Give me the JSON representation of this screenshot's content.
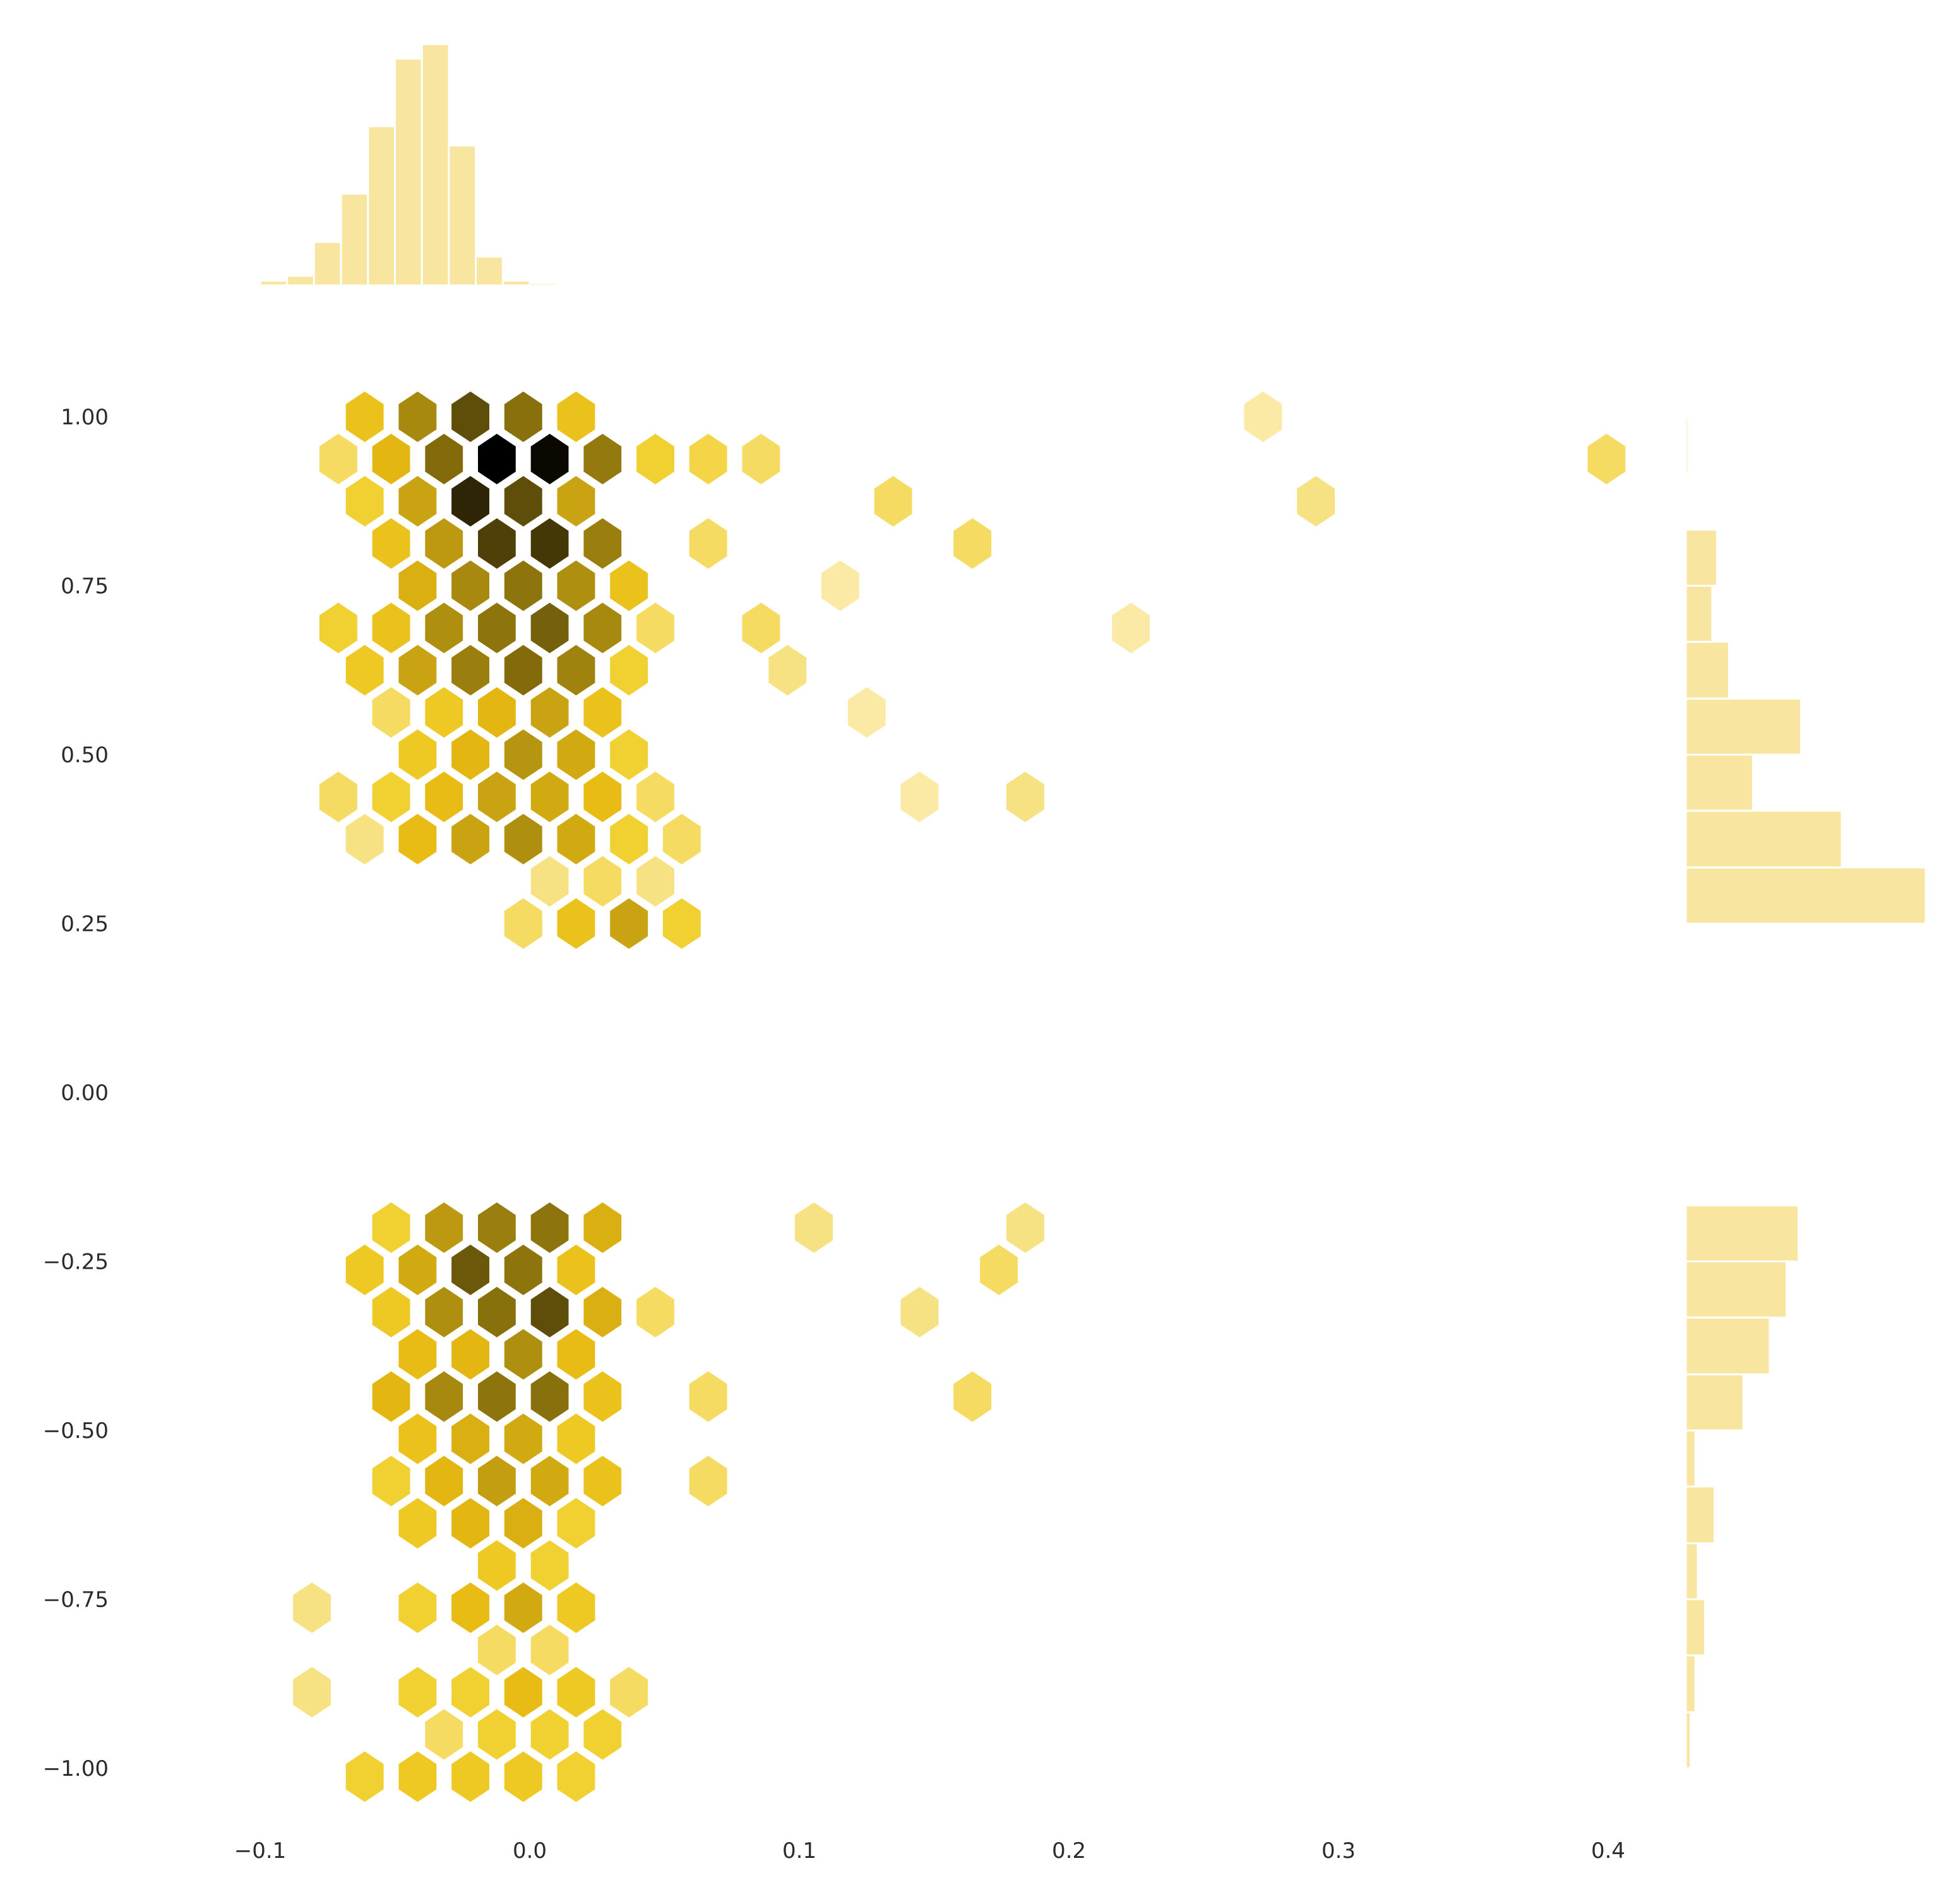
{
  "chart_data": {
    "type": "hexbin-jointplot",
    "title": "",
    "xlabel": "",
    "ylabel": "",
    "grid": false,
    "legend": "none",
    "xlim": [
      -0.112,
      0.43
    ],
    "ylim": [
      -1.12,
      1.1
    ],
    "x_ticks": [
      -0.1,
      0.0,
      0.1,
      0.2,
      0.3,
      0.4
    ],
    "x_tick_labels": [
      "−0.1",
      "0.0",
      "0.1",
      "0.2",
      "0.3",
      "0.4"
    ],
    "y_ticks": [
      1.0,
      0.75,
      0.5,
      0.25,
      0.0,
      -0.25,
      -0.5,
      -0.75,
      -1.0
    ],
    "y_tick_labels": [
      "1.00",
      "0.75",
      "0.50",
      "0.25",
      "0.00",
      "−0.25",
      "−0.50",
      "−0.75",
      "−1.00"
    ],
    "colors": {
      "colormap": [
        "#ffffff",
        "#fdf5d6",
        "#f8e48d",
        "#f1cf2c",
        "#e8ba12",
        "#b69510",
        "#6e5a0b",
        "#000000"
      ],
      "marginal_fill": "#f8e6a0",
      "marginal_edge": "#ffffff"
    },
    "hexbin": {
      "gridsize_x": 0.0196,
      "gridsize_y": 0.0833,
      "max_count": 100,
      "cells": [
        {
          "col": 6,
          "row": 0,
          "count": 4
        },
        {
          "col": 7,
          "row": 0,
          "count": 10
        },
        {
          "col": 8,
          "row": 0,
          "count": 20
        },
        {
          "col": 9,
          "row": 0,
          "count": 6
        },
        {
          "col": 6,
          "row": 1,
          "count": 3
        },
        {
          "col": 7,
          "row": 1,
          "count": 4
        },
        {
          "col": 8,
          "row": 1,
          "count": 3
        },
        {
          "col": 3,
          "row": 2,
          "count": 3
        },
        {
          "col": 4,
          "row": 2,
          "count": 12
        },
        {
          "col": 5,
          "row": 2,
          "count": 20
        },
        {
          "col": 6,
          "row": 2,
          "count": 28
        },
        {
          "col": 7,
          "row": 2,
          "count": 18
        },
        {
          "col": 8,
          "row": 2,
          "count": 6
        },
        {
          "col": 9,
          "row": 2,
          "count": 4
        },
        {
          "col": 2,
          "row": 3,
          "count": 4
        },
        {
          "col": 3,
          "row": 3,
          "count": 6
        },
        {
          "col": 4,
          "row": 3,
          "count": 12
        },
        {
          "col": 5,
          "row": 3,
          "count": 20
        },
        {
          "col": 6,
          "row": 3,
          "count": 18
        },
        {
          "col": 7,
          "row": 3,
          "count": 12
        },
        {
          "col": 8,
          "row": 3,
          "count": 4
        },
        {
          "col": 13,
          "row": 3,
          "count": 2
        },
        {
          "col": 15,
          "row": 3,
          "count": 3
        },
        {
          "col": 4,
          "row": 4,
          "count": 8
        },
        {
          "col": 5,
          "row": 4,
          "count": 14
        },
        {
          "col": 6,
          "row": 4,
          "count": 26
        },
        {
          "col": 7,
          "row": 4,
          "count": 18
        },
        {
          "col": 8,
          "row": 4,
          "count": 6
        },
        {
          "col": 3,
          "row": 5,
          "count": 4
        },
        {
          "col": 4,
          "row": 5,
          "count": 8
        },
        {
          "col": 5,
          "row": 5,
          "count": 14
        },
        {
          "col": 6,
          "row": 5,
          "count": 20
        },
        {
          "col": 7,
          "row": 5,
          "count": 10
        },
        {
          "col": 12,
          "row": 5,
          "count": 2
        },
        {
          "col": 3,
          "row": 6,
          "count": 8
        },
        {
          "col": 4,
          "row": 6,
          "count": 20
        },
        {
          "col": 5,
          "row": 6,
          "count": 34
        },
        {
          "col": 6,
          "row": 6,
          "count": 42
        },
        {
          "col": 7,
          "row": 6,
          "count": 32
        },
        {
          "col": 8,
          "row": 6,
          "count": 6
        },
        {
          "col": 11,
          "row": 6,
          "count": 3
        },
        {
          "col": 2,
          "row": 7,
          "count": 6
        },
        {
          "col": 3,
          "row": 7,
          "count": 10
        },
        {
          "col": 4,
          "row": 7,
          "count": 28
        },
        {
          "col": 5,
          "row": 7,
          "count": 38
        },
        {
          "col": 6,
          "row": 7,
          "count": 48
        },
        {
          "col": 7,
          "row": 7,
          "count": 30
        },
        {
          "col": 8,
          "row": 7,
          "count": 4
        },
        {
          "col": 10,
          "row": 7,
          "count": 4
        },
        {
          "col": 17,
          "row": 7,
          "count": 2
        },
        {
          "col": 4,
          "row": 8,
          "count": 16
        },
        {
          "col": 5,
          "row": 8,
          "count": 30
        },
        {
          "col": 6,
          "row": 8,
          "count": 38
        },
        {
          "col": 7,
          "row": 8,
          "count": 28
        },
        {
          "col": 8,
          "row": 8,
          "count": 10
        },
        {
          "col": 12,
          "row": 8,
          "count": 2
        },
        {
          "col": 3,
          "row": 9,
          "count": 10
        },
        {
          "col": 4,
          "row": 9,
          "count": 24
        },
        {
          "col": 5,
          "row": 9,
          "count": 62
        },
        {
          "col": 6,
          "row": 9,
          "count": 66
        },
        {
          "col": 7,
          "row": 9,
          "count": 34
        },
        {
          "col": 9,
          "row": 9,
          "count": 4
        },
        {
          "col": 14,
          "row": 9,
          "count": 4
        },
        {
          "col": 3,
          "row": 10,
          "count": 6
        },
        {
          "col": 4,
          "row": 10,
          "count": 20
        },
        {
          "col": 5,
          "row": 10,
          "count": 76
        },
        {
          "col": 6,
          "row": 10,
          "count": 56
        },
        {
          "col": 7,
          "row": 10,
          "count": 20
        },
        {
          "col": 13,
          "row": 10,
          "count": 4
        },
        {
          "col": 21,
          "row": 10,
          "count": 3
        },
        {
          "col": 2,
          "row": 11,
          "count": 4
        },
        {
          "col": 3,
          "row": 11,
          "count": 14
        },
        {
          "col": 4,
          "row": 11,
          "count": 42
        },
        {
          "col": 5,
          "row": 11,
          "count": 100
        },
        {
          "col": 6,
          "row": 11,
          "count": 94
        },
        {
          "col": 7,
          "row": 11,
          "count": 36
        },
        {
          "col": 8,
          "row": 11,
          "count": 6
        },
        {
          "col": 9,
          "row": 11,
          "count": 5
        },
        {
          "col": 10,
          "row": 11,
          "count": 4
        },
        {
          "col": 26,
          "row": 11,
          "count": 4
        },
        {
          "col": 3,
          "row": 12,
          "count": 10
        },
        {
          "col": 4,
          "row": 12,
          "count": 30
        },
        {
          "col": 5,
          "row": 12,
          "count": 56
        },
        {
          "col": 6,
          "row": 12,
          "count": 40
        },
        {
          "col": 7,
          "row": 12,
          "count": 10
        },
        {
          "col": 20,
          "row": 12,
          "count": 2
        },
        {
          "col": 3,
          "row": -1,
          "count": 6
        },
        {
          "col": 4,
          "row": -1,
          "count": 24
        },
        {
          "col": 5,
          "row": -1,
          "count": 34
        },
        {
          "col": 6,
          "row": -1,
          "count": 38
        },
        {
          "col": 7,
          "row": -1,
          "count": 16
        },
        {
          "col": 11,
          "row": -1,
          "count": 3
        },
        {
          "col": 15,
          "row": -1,
          "count": 3
        },
        {
          "col": 3,
          "row": -2,
          "count": 8
        },
        {
          "col": 4,
          "row": -2,
          "count": 18
        },
        {
          "col": 5,
          "row": -2,
          "count": 52
        },
        {
          "col": 6,
          "row": -2,
          "count": 38
        },
        {
          "col": 7,
          "row": -2,
          "count": 10
        },
        {
          "col": 15,
          "row": -2,
          "count": 4
        },
        {
          "col": 3,
          "row": -3,
          "count": 8
        },
        {
          "col": 4,
          "row": -3,
          "count": 28
        },
        {
          "col": 5,
          "row": -3,
          "count": 40
        },
        {
          "col": 6,
          "row": -3,
          "count": 56
        },
        {
          "col": 7,
          "row": -3,
          "count": 16
        },
        {
          "col": 8,
          "row": -3,
          "count": 4
        },
        {
          "col": 13,
          "row": -3,
          "count": 3
        },
        {
          "col": 4,
          "row": -4,
          "count": 12
        },
        {
          "col": 5,
          "row": -4,
          "count": 14
        },
        {
          "col": 6,
          "row": -4,
          "count": 28
        },
        {
          "col": 7,
          "row": -4,
          "count": 12
        },
        {
          "col": 3,
          "row": -5,
          "count": 14
        },
        {
          "col": 4,
          "row": -5,
          "count": 30
        },
        {
          "col": 5,
          "row": -5,
          "count": 38
        },
        {
          "col": 6,
          "row": -5,
          "count": 40
        },
        {
          "col": 7,
          "row": -5,
          "count": 10
        },
        {
          "col": 9,
          "row": -5,
          "count": 4
        },
        {
          "col": 14,
          "row": -5,
          "count": 4
        },
        {
          "col": 4,
          "row": -6,
          "count": 10
        },
        {
          "col": 5,
          "row": -6,
          "count": 16
        },
        {
          "col": 6,
          "row": -6,
          "count": 18
        },
        {
          "col": 7,
          "row": -6,
          "count": 8
        },
        {
          "col": 3,
          "row": -7,
          "count": 6
        },
        {
          "col": 4,
          "row": -7,
          "count": 14
        },
        {
          "col": 5,
          "row": -7,
          "count": 22
        },
        {
          "col": 6,
          "row": -7,
          "count": 18
        },
        {
          "col": 7,
          "row": -7,
          "count": 10
        },
        {
          "col": 9,
          "row": -7,
          "count": 4
        },
        {
          "col": 4,
          "row": -8,
          "count": 8
        },
        {
          "col": 5,
          "row": -8,
          "count": 14
        },
        {
          "col": 6,
          "row": -8,
          "count": 16
        },
        {
          "col": 7,
          "row": -8,
          "count": 6
        },
        {
          "col": 5,
          "row": -9,
          "count": 8
        },
        {
          "col": 6,
          "row": -9,
          "count": 6
        },
        {
          "col": 2,
          "row": -10,
          "count": 3
        },
        {
          "col": 4,
          "row": -10,
          "count": 6
        },
        {
          "col": 5,
          "row": -10,
          "count": 12
        },
        {
          "col": 6,
          "row": -10,
          "count": 18
        },
        {
          "col": 7,
          "row": -10,
          "count": 8
        },
        {
          "col": 5,
          "row": -11,
          "count": 4
        },
        {
          "col": 6,
          "row": -11,
          "count": 4
        },
        {
          "col": 4,
          "row": -12,
          "count": 6
        },
        {
          "col": 5,
          "row": -12,
          "count": 6
        },
        {
          "col": 6,
          "row": -12,
          "count": 12
        },
        {
          "col": 7,
          "row": -12,
          "count": 8
        },
        {
          "col": 8,
          "row": -12,
          "count": 4
        },
        {
          "col": 4,
          "row": -13,
          "count": 4
        },
        {
          "col": 5,
          "row": -13,
          "count": 6
        },
        {
          "col": 6,
          "row": -13,
          "count": 6
        },
        {
          "col": 7,
          "row": -13,
          "count": 6
        },
        {
          "col": 3,
          "row": -14,
          "count": 6
        },
        {
          "col": 4,
          "row": -14,
          "count": 8
        },
        {
          "col": 5,
          "row": -14,
          "count": 8
        },
        {
          "col": 6,
          "row": -14,
          "count": 8
        },
        {
          "col": 7,
          "row": -14,
          "count": 6
        },
        {
          "col": 2,
          "row": -12,
          "count": 3
        }
      ]
    },
    "marginal_x": {
      "bin_edges": [
        -0.1,
        -0.09,
        -0.08,
        -0.07,
        -0.06,
        -0.05,
        -0.04,
        -0.03,
        -0.02,
        -0.01,
        0.0,
        0.01,
        0.02,
        0.03,
        0.04
      ],
      "counts": [
        2,
        4,
        18,
        38,
        66,
        94,
        100,
        58,
        12,
        2,
        1,
        0.5,
        0.3,
        0.2
      ]
    },
    "marginal_y": {
      "bin_edges": [
        -1.0,
        -0.917,
        -0.833,
        -0.75,
        -0.667,
        -0.583,
        -0.5,
        -0.417,
        -0.333,
        -0.25,
        -0.167,
        0.25,
        0.333,
        0.417,
        0.5,
        0.583,
        0.667,
        0.75,
        0.833,
        0.917,
        1.0
      ],
      "counts": [
        2,
        4,
        8,
        5,
        12,
        4,
        24,
        35,
        42,
        47,
        0,
        100,
        65,
        28,
        48,
        18,
        11,
        13,
        0.5,
        1
      ]
    }
  }
}
